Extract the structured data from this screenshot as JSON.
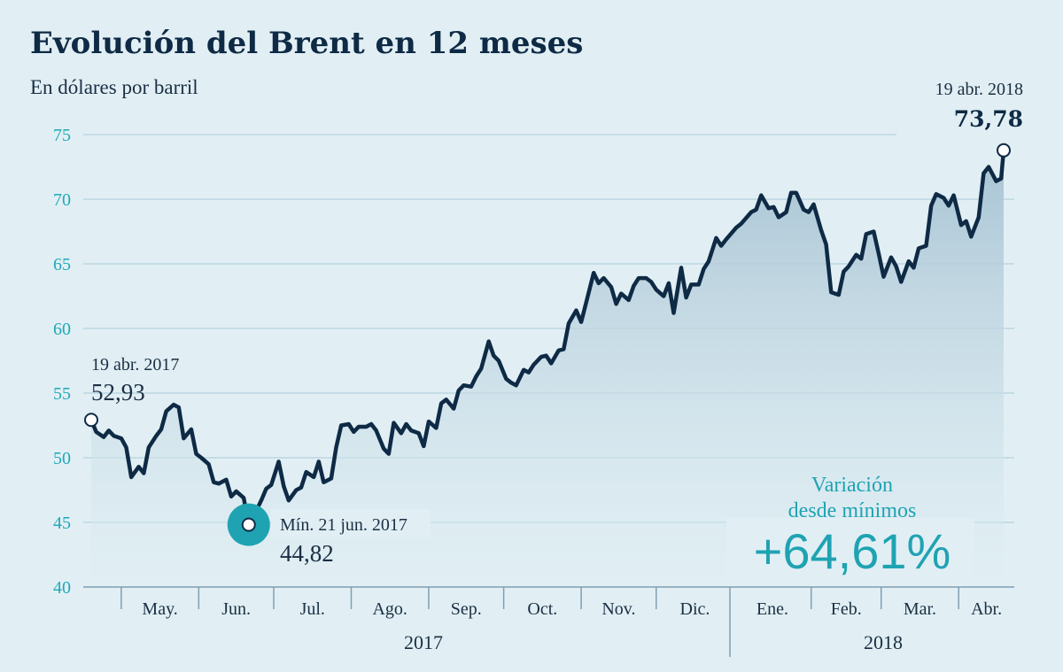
{
  "chart_data": {
    "type": "line",
    "title": "Evolución del Brent en 12 meses",
    "subtitle": "En dólares por barril",
    "y_ticks": [
      40,
      45,
      50,
      55,
      60,
      65,
      70,
      75
    ],
    "ylim": [
      40,
      75
    ],
    "grid": true,
    "months": [
      "May.",
      "Jun.",
      "Jul.",
      "Ago.",
      "Sep.",
      "Oct.",
      "Nov.",
      "Dic.",
      "Ene.",
      "Feb.",
      "Mar.",
      "Abr."
    ],
    "years": [
      "2017",
      "2018"
    ],
    "x_domain": [
      "2017-04-19",
      "2018-04-19"
    ],
    "series": [
      {
        "values": [
          [
            "2017-04-19",
            52.93
          ],
          [
            "2017-04-21",
            52.0
          ],
          [
            "2017-04-24",
            51.6
          ],
          [
            "2017-04-26",
            52.1
          ],
          [
            "2017-04-28",
            51.7
          ],
          [
            "2017-05-01",
            51.5
          ],
          [
            "2017-05-03",
            50.8
          ],
          [
            "2017-05-05",
            48.5
          ],
          [
            "2017-05-08",
            49.3
          ],
          [
            "2017-05-10",
            48.8
          ],
          [
            "2017-05-12",
            50.8
          ],
          [
            "2017-05-15",
            51.7
          ],
          [
            "2017-05-17",
            52.2
          ],
          [
            "2017-05-19",
            53.6
          ],
          [
            "2017-05-22",
            54.1
          ],
          [
            "2017-05-24",
            53.9
          ],
          [
            "2017-05-26",
            51.5
          ],
          [
            "2017-05-29",
            52.2
          ],
          [
            "2017-05-31",
            50.3
          ],
          [
            "2017-06-02",
            50.0
          ],
          [
            "2017-06-05",
            49.5
          ],
          [
            "2017-06-07",
            48.1
          ],
          [
            "2017-06-09",
            48.0
          ],
          [
            "2017-06-12",
            48.3
          ],
          [
            "2017-06-14",
            47.0
          ],
          [
            "2017-06-16",
            47.4
          ],
          [
            "2017-06-19",
            46.9
          ],
          [
            "2017-06-21",
            44.82
          ],
          [
            "2017-06-23",
            45.5
          ],
          [
            "2017-06-26",
            46.7
          ],
          [
            "2017-06-28",
            47.6
          ],
          [
            "2017-06-30",
            47.9
          ],
          [
            "2017-07-03",
            49.7
          ],
          [
            "2017-07-05",
            47.8
          ],
          [
            "2017-07-07",
            46.7
          ],
          [
            "2017-07-10",
            47.5
          ],
          [
            "2017-07-12",
            47.7
          ],
          [
            "2017-07-14",
            48.9
          ],
          [
            "2017-07-17",
            48.5
          ],
          [
            "2017-07-19",
            49.7
          ],
          [
            "2017-07-21",
            48.1
          ],
          [
            "2017-07-24",
            48.4
          ],
          [
            "2017-07-26",
            50.8
          ],
          [
            "2017-07-28",
            52.5
          ],
          [
            "2017-07-31",
            52.6
          ],
          [
            "2017-08-02",
            52.0
          ],
          [
            "2017-08-04",
            52.4
          ],
          [
            "2017-08-07",
            52.4
          ],
          [
            "2017-08-09",
            52.6
          ],
          [
            "2017-08-11",
            52.1
          ],
          [
            "2017-08-14",
            50.7
          ],
          [
            "2017-08-16",
            50.3
          ],
          [
            "2017-08-18",
            52.7
          ],
          [
            "2017-08-21",
            51.9
          ],
          [
            "2017-08-23",
            52.6
          ],
          [
            "2017-08-25",
            52.1
          ],
          [
            "2017-08-28",
            51.9
          ],
          [
            "2017-08-30",
            50.9
          ],
          [
            "2017-09-01",
            52.8
          ],
          [
            "2017-09-04",
            52.3
          ],
          [
            "2017-09-06",
            54.2
          ],
          [
            "2017-09-08",
            54.5
          ],
          [
            "2017-09-11",
            53.8
          ],
          [
            "2017-09-13",
            55.2
          ],
          [
            "2017-09-15",
            55.6
          ],
          [
            "2017-09-18",
            55.5
          ],
          [
            "2017-09-20",
            56.3
          ],
          [
            "2017-09-22",
            56.9
          ],
          [
            "2017-09-25",
            59.0
          ],
          [
            "2017-09-27",
            57.9
          ],
          [
            "2017-09-29",
            57.5
          ],
          [
            "2017-10-02",
            56.1
          ],
          [
            "2017-10-04",
            55.8
          ],
          [
            "2017-10-06",
            55.6
          ],
          [
            "2017-10-09",
            56.8
          ],
          [
            "2017-10-11",
            56.6
          ],
          [
            "2017-10-13",
            57.2
          ],
          [
            "2017-10-16",
            57.8
          ],
          [
            "2017-10-18",
            57.9
          ],
          [
            "2017-10-20",
            57.3
          ],
          [
            "2017-10-23",
            58.3
          ],
          [
            "2017-10-25",
            58.4
          ],
          [
            "2017-10-27",
            60.4
          ],
          [
            "2017-10-30",
            61.4
          ],
          [
            "2017-11-01",
            60.5
          ],
          [
            "2017-11-03",
            62.0
          ],
          [
            "2017-11-06",
            64.3
          ],
          [
            "2017-11-08",
            63.5
          ],
          [
            "2017-11-10",
            63.9
          ],
          [
            "2017-11-13",
            63.2
          ],
          [
            "2017-11-15",
            61.9
          ],
          [
            "2017-11-17",
            62.7
          ],
          [
            "2017-11-20",
            62.2
          ],
          [
            "2017-11-22",
            63.3
          ],
          [
            "2017-11-24",
            63.9
          ],
          [
            "2017-11-27",
            63.9
          ],
          [
            "2017-11-29",
            63.6
          ],
          [
            "2017-12-01",
            63.0
          ],
          [
            "2017-12-04",
            62.5
          ],
          [
            "2017-12-06",
            63.5
          ],
          [
            "2017-12-08",
            61.2
          ],
          [
            "2017-12-11",
            64.7
          ],
          [
            "2017-12-13",
            62.4
          ],
          [
            "2017-12-15",
            63.4
          ],
          [
            "2017-12-18",
            63.4
          ],
          [
            "2017-12-20",
            64.6
          ],
          [
            "2017-12-22",
            65.2
          ],
          [
            "2017-12-25",
            67.0
          ],
          [
            "2017-12-27",
            66.4
          ],
          [
            "2017-12-29",
            66.9
          ],
          [
            "2018-01-02",
            67.8
          ],
          [
            "2018-01-04",
            68.1
          ],
          [
            "2018-01-08",
            69.0
          ],
          [
            "2018-01-10",
            69.2
          ],
          [
            "2018-01-12",
            70.3
          ],
          [
            "2018-01-15",
            69.3
          ],
          [
            "2018-01-17",
            69.4
          ],
          [
            "2018-01-19",
            68.6
          ],
          [
            "2018-01-22",
            69.0
          ],
          [
            "2018-01-24",
            70.5
          ],
          [
            "2018-01-26",
            70.5
          ],
          [
            "2018-01-29",
            69.2
          ],
          [
            "2018-01-31",
            69.0
          ],
          [
            "2018-02-02",
            69.6
          ],
          [
            "2018-02-05",
            67.6
          ],
          [
            "2018-02-07",
            66.5
          ],
          [
            "2018-02-09",
            62.8
          ],
          [
            "2018-02-12",
            62.6
          ],
          [
            "2018-02-14",
            64.4
          ],
          [
            "2018-02-16",
            64.8
          ],
          [
            "2018-02-19",
            65.7
          ],
          [
            "2018-02-21",
            65.4
          ],
          [
            "2018-02-23",
            67.3
          ],
          [
            "2018-02-26",
            67.5
          ],
          [
            "2018-02-28",
            65.8
          ],
          [
            "2018-03-02",
            64.0
          ],
          [
            "2018-03-05",
            65.5
          ],
          [
            "2018-03-07",
            64.8
          ],
          [
            "2018-03-09",
            63.6
          ],
          [
            "2018-03-12",
            65.2
          ],
          [
            "2018-03-14",
            64.7
          ],
          [
            "2018-03-16",
            66.2
          ],
          [
            "2018-03-19",
            66.4
          ],
          [
            "2018-03-21",
            69.5
          ],
          [
            "2018-03-23",
            70.4
          ],
          [
            "2018-03-26",
            70.1
          ],
          [
            "2018-03-28",
            69.5
          ],
          [
            "2018-03-30",
            70.3
          ],
          [
            "2018-04-02",
            68.0
          ],
          [
            "2018-04-04",
            68.3
          ],
          [
            "2018-04-06",
            67.1
          ],
          [
            "2018-04-09",
            68.6
          ],
          [
            "2018-04-11",
            72.0
          ],
          [
            "2018-04-13",
            72.5
          ],
          [
            "2018-04-16",
            71.4
          ],
          [
            "2018-04-18",
            71.6
          ],
          [
            "2018-04-19",
            73.78
          ]
        ]
      }
    ],
    "annotations": {
      "start": {
        "date_label": "19 abr. 2017",
        "value_label": "52,93",
        "x": "2017-04-19",
        "y": 52.93
      },
      "min": {
        "date_label": "Mín. 21 jun. 2017",
        "value_label": "44,82",
        "x": "2017-06-21",
        "y": 44.82
      },
      "end": {
        "date_label": "19 abr. 2018",
        "value_label": "73,78",
        "x": "2018-04-19",
        "y": 73.78
      },
      "variation": {
        "label_line1": "Variación",
        "label_line2": "desde mínimos",
        "value": "+64,61%"
      }
    },
    "colors": {
      "background": "#e1eff4",
      "line": "#0e2a45",
      "area_top": "#a7c3d3",
      "area_bottom": "#e1eff4",
      "accent": "#1fa3b3",
      "grid": "#a9c9d9"
    }
  }
}
